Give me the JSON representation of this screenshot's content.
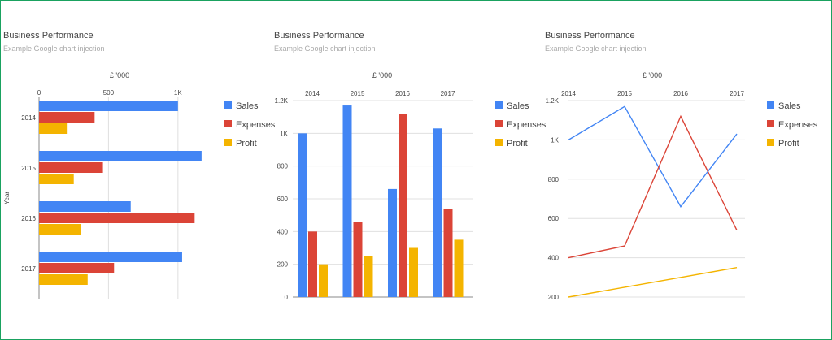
{
  "colors": {
    "sales": "#4285f4",
    "expenses": "#db4437",
    "profit": "#f4b400",
    "grid": "#e0e0e0",
    "axis": "#888888",
    "text": "#444444"
  },
  "chart_data": [
    {
      "type": "bar",
      "orientation": "horizontal",
      "title": "Business Performance",
      "subtitle": "Example Google chart injection",
      "axis_title": "£ '000",
      "ylabel": "Year",
      "categories": [
        "2014",
        "2015",
        "2016",
        "2017"
      ],
      "series": [
        {
          "name": "Sales",
          "values": [
            1000,
            1170,
            660,
            1030
          ]
        },
        {
          "name": "Expenses",
          "values": [
            400,
            460,
            1120,
            540
          ]
        },
        {
          "name": "Profit",
          "values": [
            200,
            250,
            300,
            350
          ]
        }
      ],
      "ticks": [
        0,
        500,
        1000
      ],
      "tick_labels": [
        "0",
        "500",
        "1K"
      ],
      "xlim": [
        0,
        1200
      ],
      "grid": true,
      "legend": "right"
    },
    {
      "type": "bar",
      "orientation": "vertical",
      "title": "Business Performance",
      "subtitle": "Example Google chart injection",
      "axis_title": "£ '000",
      "categories": [
        "2014",
        "2015",
        "2016",
        "2017"
      ],
      "series": [
        {
          "name": "Sales",
          "values": [
            1000,
            1170,
            660,
            1030
          ]
        },
        {
          "name": "Expenses",
          "values": [
            400,
            460,
            1120,
            540
          ]
        },
        {
          "name": "Profit",
          "values": [
            200,
            250,
            300,
            350
          ]
        }
      ],
      "ticks": [
        0,
        200,
        400,
        600,
        800,
        1000,
        1200
      ],
      "tick_labels": [
        "0",
        "200",
        "400",
        "600",
        "800",
        "1K",
        "1.2K"
      ],
      "ylim": [
        0,
        1200
      ],
      "grid": true,
      "legend": "right"
    },
    {
      "type": "line",
      "title": "Business Performance",
      "subtitle": "Example Google chart injection",
      "axis_title": "£ '000",
      "categories": [
        "2014",
        "2015",
        "2016",
        "2017"
      ],
      "series": [
        {
          "name": "Sales",
          "values": [
            1000,
            1170,
            660,
            1030
          ]
        },
        {
          "name": "Expenses",
          "values": [
            400,
            460,
            1120,
            540
          ]
        },
        {
          "name": "Profit",
          "values": [
            200,
            250,
            300,
            350
          ]
        }
      ],
      "ticks": [
        200,
        400,
        600,
        800,
        1000,
        1200
      ],
      "tick_labels": [
        "200",
        "400",
        "600",
        "800",
        "1K",
        "1.2K"
      ],
      "ylim": [
        200,
        1200
      ],
      "grid": true,
      "legend": "right"
    }
  ]
}
